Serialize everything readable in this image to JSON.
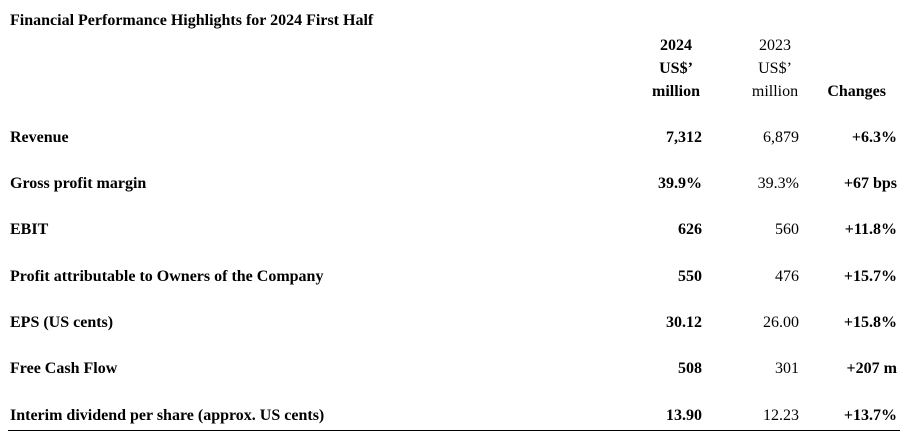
{
  "title": "Financial Performance Highlights for 2024 First Half",
  "columns": {
    "current": [
      "2024",
      "US$’",
      "million"
    ],
    "previous": [
      "2023",
      "US$’",
      "million"
    ],
    "changes": "Changes"
  },
  "rows": [
    {
      "label": "Revenue",
      "v2024": "7,312",
      "v2023": "6,879",
      "change": "+6.3%"
    },
    {
      "label": "Gross profit margin",
      "v2024": "39.9%",
      "v2023": "39.3%",
      "change": "+67 bps"
    },
    {
      "label": "EBIT",
      "v2024": "626",
      "v2023": "560",
      "change": "+11.8%"
    },
    {
      "label": "Profit attributable to Owners of the Company",
      "v2024": "550",
      "v2023": "476",
      "change": "+15.7%"
    },
    {
      "label": "EPS (US cents)",
      "v2024": "30.12",
      "v2023": "26.00",
      "change": "+15.8%"
    },
    {
      "label": "Free Cash Flow",
      "v2024": "508",
      "v2023": "301",
      "change": "+207 m"
    },
    {
      "label": "Interim dividend per share (approx. US cents)",
      "v2024": "13.90",
      "v2023": "12.23",
      "change": "+13.7%"
    }
  ]
}
